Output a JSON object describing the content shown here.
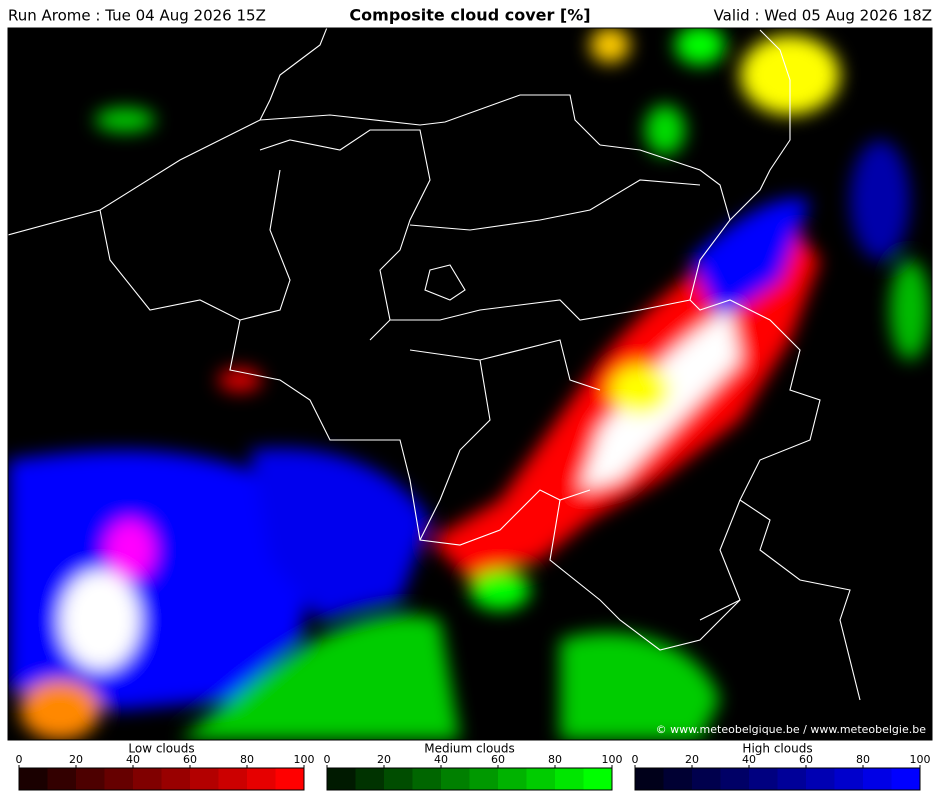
{
  "header": {
    "run": "Run Arome : Tue 04 Aug 2026 15Z",
    "title": "Composite cloud cover [%]",
    "valid": "Valid : Wed 05 Aug 2026 18Z"
  },
  "credit": "© www.meteobelgique.be / www.meteobelgie.be",
  "legends": [
    {
      "title": "Low clouds",
      "ticks": [
        0,
        20,
        40,
        60,
        80,
        100
      ],
      "colors": [
        "#1a0000",
        "#330000",
        "#4d0000",
        "#660000",
        "#800000",
        "#990000",
        "#b30000",
        "#cc0000",
        "#e60000",
        "#ff0000"
      ]
    },
    {
      "title": "Medium clouds",
      "ticks": [
        0,
        20,
        40,
        60,
        80,
        100
      ],
      "colors": [
        "#001a00",
        "#003300",
        "#004d00",
        "#006600",
        "#008000",
        "#009900",
        "#00b300",
        "#00cc00",
        "#00e600",
        "#00ff00"
      ]
    },
    {
      "title": "High clouds",
      "ticks": [
        0,
        20,
        40,
        60,
        80,
        100
      ],
      "colors": [
        "#00001a",
        "#000033",
        "#00004d",
        "#000066",
        "#000080",
        "#000099",
        "#0000b3",
        "#0000cc",
        "#0000e6",
        "#0000ff"
      ]
    }
  ]
}
